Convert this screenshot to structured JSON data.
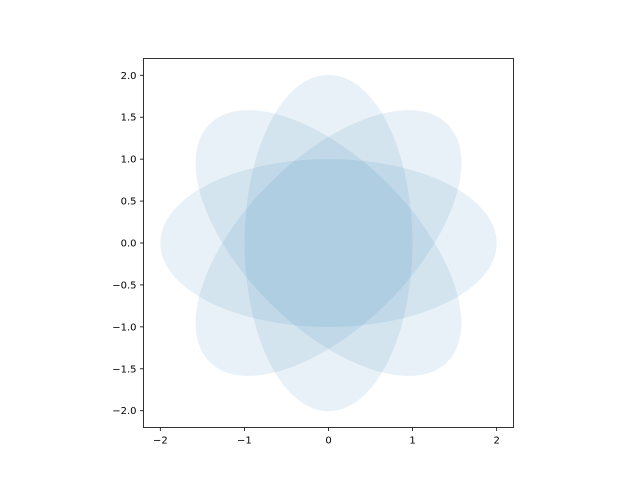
{
  "chart_data": {
    "type": "ellipses",
    "title": "",
    "xlabel": "",
    "ylabel": "",
    "xlim": [
      -2.2,
      2.2
    ],
    "ylim": [
      -2.2,
      2.2
    ],
    "grid": false,
    "aspect": "equal",
    "ellipses": [
      {
        "center": [
          0,
          0
        ],
        "width": 4,
        "height": 2,
        "angle": 0
      },
      {
        "center": [
          0,
          0
        ],
        "width": 4,
        "height": 2,
        "angle": 45
      },
      {
        "center": [
          0,
          0
        ],
        "width": 4,
        "height": 2,
        "angle": 90
      },
      {
        "center": [
          0,
          0
        ],
        "width": 4,
        "height": 2,
        "angle": 135
      }
    ],
    "fill_color": "#1f77b4",
    "alpha": 0.1,
    "x_ticks": [
      -2,
      -1,
      0,
      1,
      2
    ],
    "x_tick_labels": [
      "−2",
      "−1",
      "0",
      "1",
      "2"
    ],
    "y_ticks": [
      -2.0,
      -1.5,
      -1.0,
      -0.5,
      0.0,
      0.5,
      1.0,
      1.5,
      2.0
    ],
    "y_tick_labels": [
      "−2.0",
      "−1.5",
      "−1.0",
      "−0.5",
      "0.0",
      "0.5",
      "1.0",
      "1.5",
      "2.0"
    ]
  }
}
